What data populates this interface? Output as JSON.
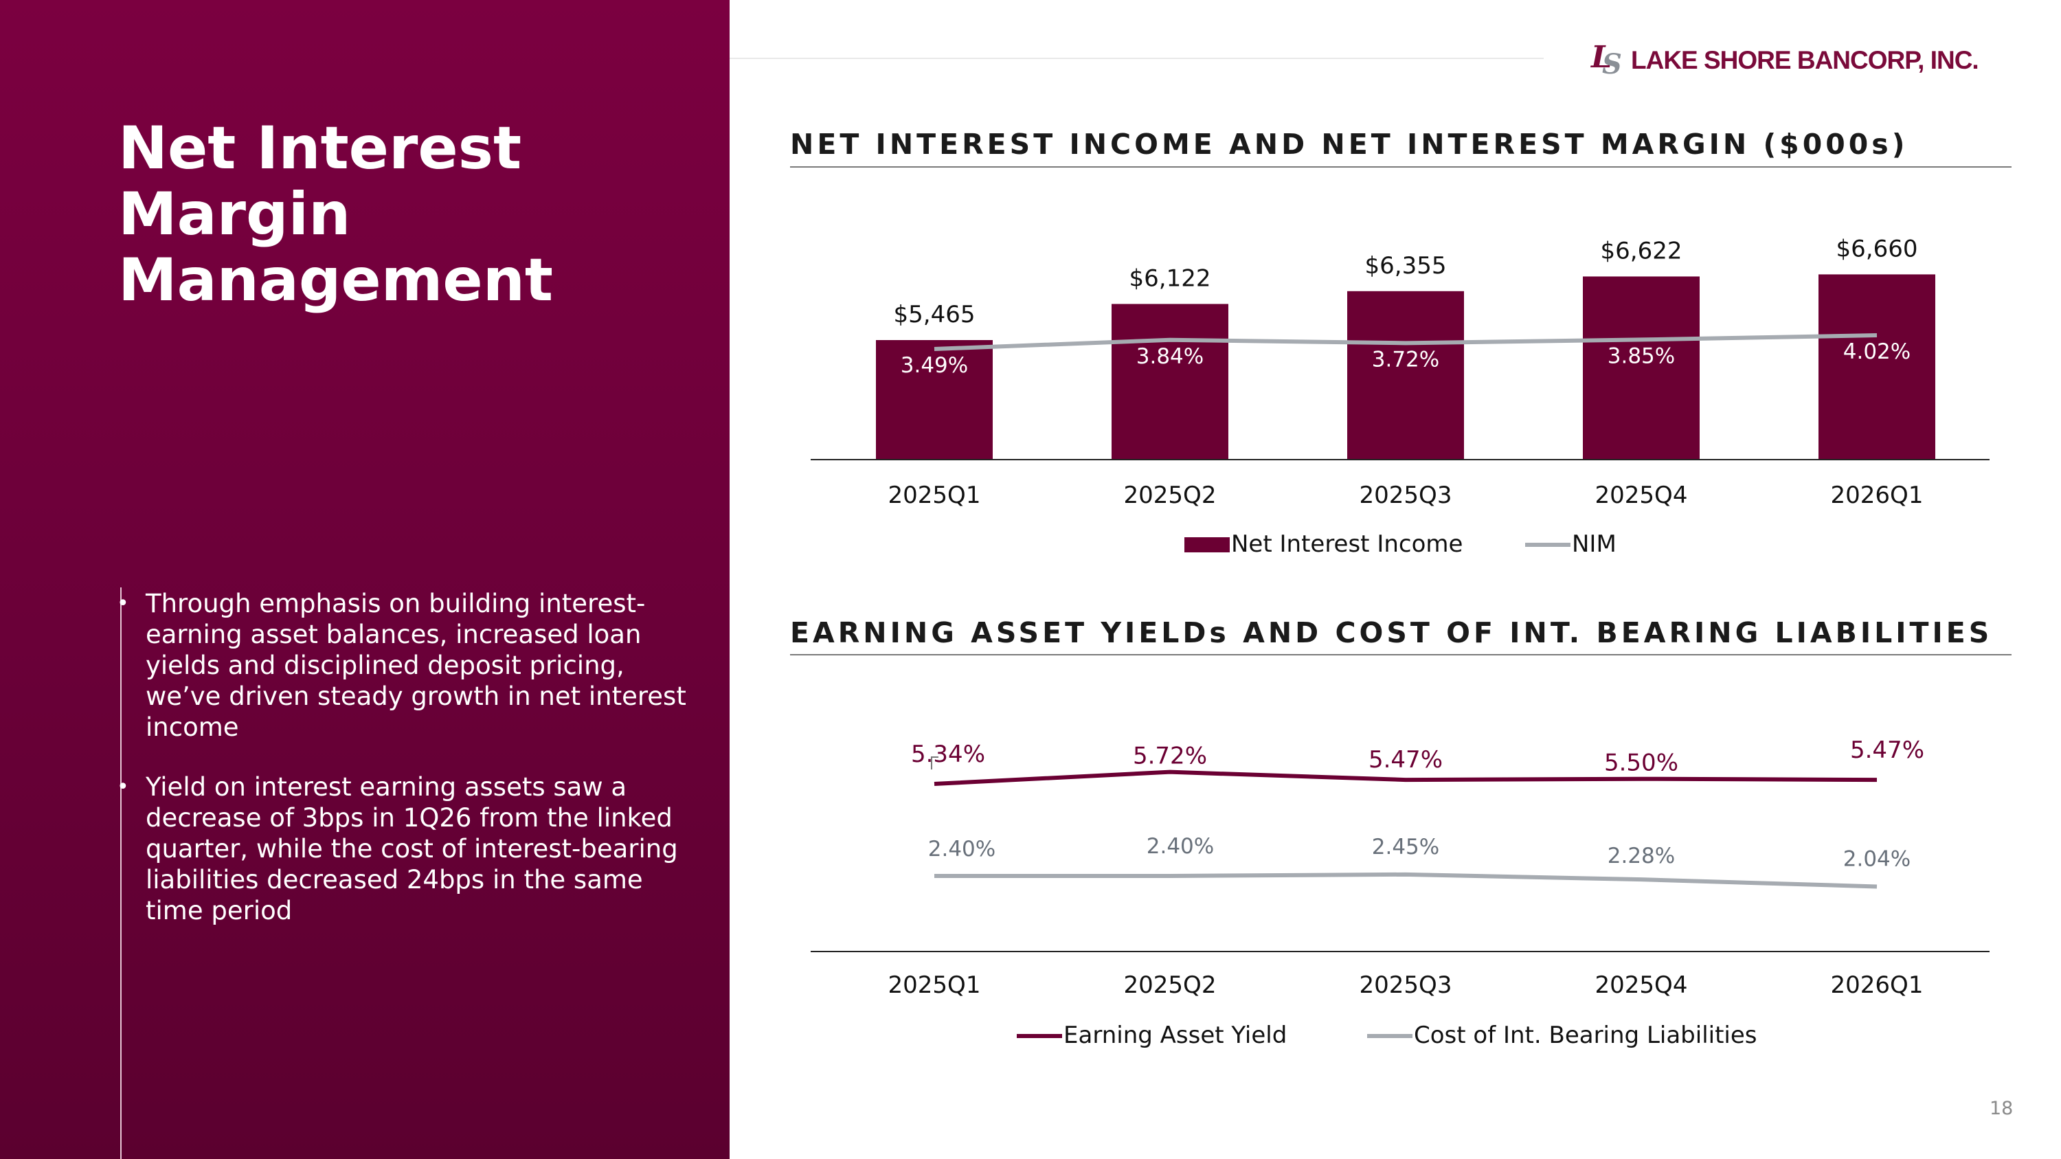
{
  "slide": {
    "title": "Net Interest Margin Management",
    "page_number": "18",
    "bullet_glyph": "•",
    "bullets": [
      "Through emphasis on building interest-earning asset balances, increased loan yields and disciplined deposit pricing, we’ve driven steady growth in net interest income",
      "Yield on interest earning assets saw a decrease of 3bps in 1Q26 from the linked quarter, while the cost of interest-bearing liabilities decreased 24bps in the same time period"
    ]
  },
  "logo": {
    "mark_l": "L",
    "mark_s": "S",
    "text": "LAKE SHORE BANCORP, INC.",
    "brand_color": "#7a0a3a",
    "accent_gray": "#8a8f96"
  },
  "colors": {
    "panel": "#730039",
    "bar": "#6b0033",
    "nim_line": "#a6abb1",
    "yield_line": "#6b0033",
    "cost_line": "#a6abb1",
    "cost_label": "#68707a"
  },
  "chart_data": [
    {
      "type": "bar",
      "title": "NET INTEREST INCOME AND NET INTEREST MARGIN ($000s)",
      "categories": [
        "2025Q1",
        "2025Q2",
        "2025Q3",
        "2025Q4",
        "2026Q1"
      ],
      "series": [
        {
          "name": "Net Interest Income",
          "type": "bar",
          "values": [
            5465,
            6122,
            6355,
            6622,
            6660
          ],
          "labels": [
            "$5,465",
            "$6,122",
            "$6,355",
            "$6,622",
            "$6,660"
          ]
        },
        {
          "name": "NIM",
          "type": "line",
          "values": [
            3.49,
            3.84,
            3.72,
            3.85,
            4.02
          ],
          "labels": [
            "3.49%",
            "3.84%",
            "3.72%",
            "3.85%",
            "4.02%"
          ]
        }
      ],
      "legend": "bottom",
      "grid": false
    },
    {
      "type": "line",
      "title": "EARNING ASSET YIELDs AND COST OF INT. BEARING LIABILITIES",
      "categories": [
        "2025Q1",
        "2025Q2",
        "2025Q3",
        "2025Q4",
        "2026Q1"
      ],
      "series": [
        {
          "name": "Earning Asset Yield",
          "values": [
            5.34,
            5.72,
            5.47,
            5.5,
            5.47
          ],
          "labels": [
            "5.34%",
            "5.72%",
            "5.47%",
            "5.50%",
            "5.47%"
          ]
        },
        {
          "name": "Cost of Int. Bearing Liabilities",
          "values": [
            2.4,
            2.4,
            2.45,
            2.28,
            2.04
          ],
          "labels": [
            "2.40%",
            "2.40%",
            "2.45%",
            "2.28%",
            "2.04%"
          ]
        }
      ],
      "legend": "bottom",
      "grid": false
    }
  ]
}
